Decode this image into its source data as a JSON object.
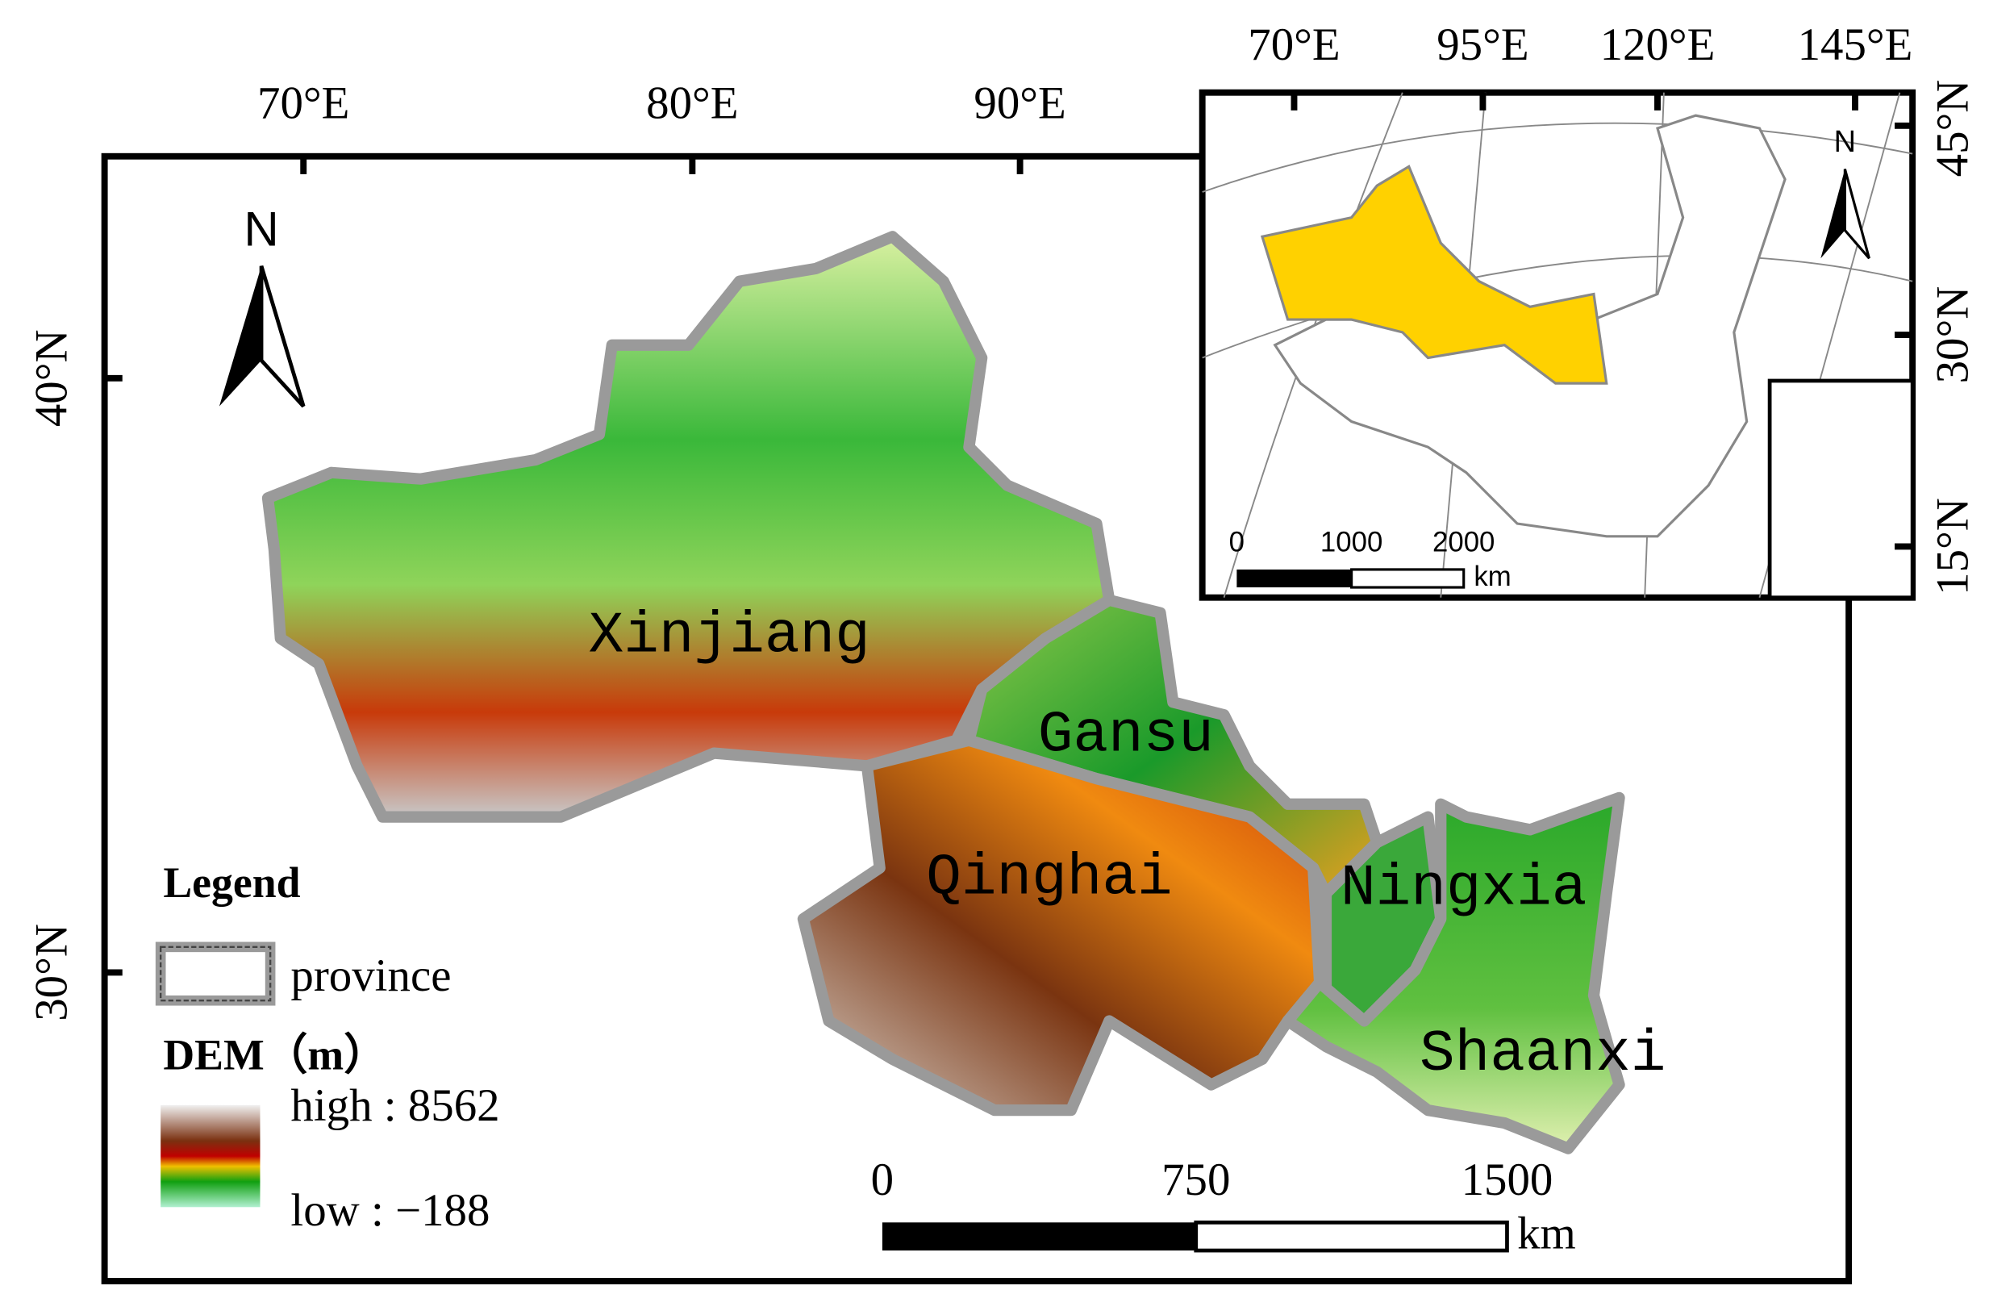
{
  "main_map": {
    "lon_labels": [
      "70°E",
      "80°E",
      "90°E"
    ],
    "lat_labels": [
      "40°N",
      "30°N"
    ],
    "north_arrow": "N",
    "provinces": [
      "Xinjiang",
      "Gansu",
      "Qinghai",
      "Ningxia",
      "Shaanxi"
    ],
    "scale_bar": {
      "labels": [
        "0",
        "750",
        "1500"
      ],
      "unit": "km"
    }
  },
  "legend": {
    "title": "Legend",
    "province": "province",
    "dem_title": "DEM（m）",
    "high": "high : 8562",
    "low": "low : −188"
  },
  "inset_map": {
    "lon_labels": [
      "70°E",
      "95°E",
      "120°E",
      "145°E"
    ],
    "lat_labels": [
      "45°N",
      "30°N",
      "15°N"
    ],
    "north_arrow": "N",
    "scale_bar": {
      "labels": [
        "0",
        "1000",
        "2000"
      ],
      "unit": "km"
    }
  }
}
